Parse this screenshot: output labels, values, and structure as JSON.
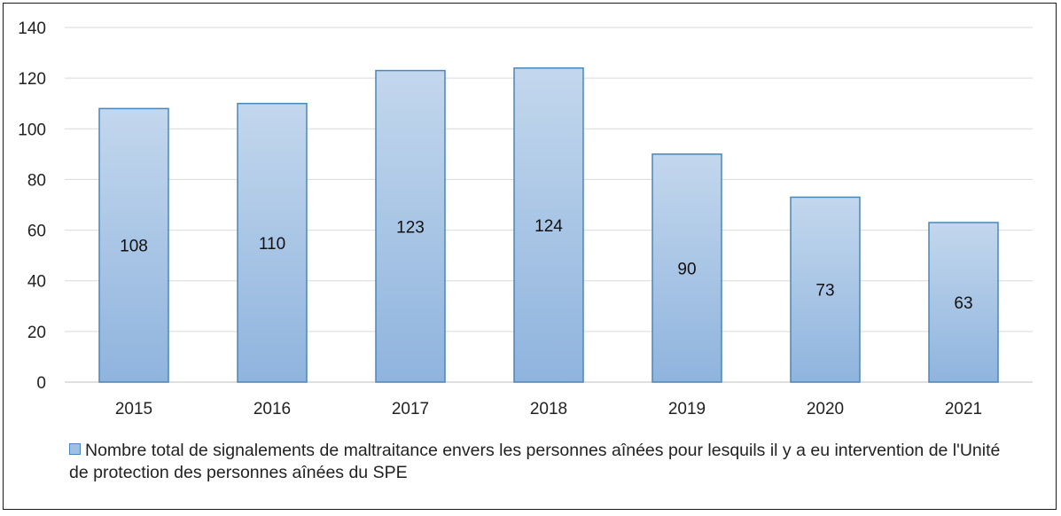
{
  "chart_data": {
    "type": "bar",
    "categories": [
      "2015",
      "2016",
      "2017",
      "2018",
      "2019",
      "2020",
      "2021"
    ],
    "series": [
      {
        "name": "Nombre total de signalements de maltraitance envers les personnes aînées pour lesquils il y a eu intervention de l'Unité de protection des personnes aînées du SPE",
        "values": [
          108,
          110,
          123,
          124,
          90,
          73,
          63
        ]
      }
    ],
    "ylim": [
      0,
      140
    ],
    "yticks": [
      0,
      20,
      40,
      60,
      80,
      100,
      120,
      140
    ],
    "grid": true,
    "legend": "bottom",
    "colors": {
      "bar_top": "#c3d7ed",
      "bar_bottom": "#8fb4de",
      "bar_border": "#4a86b8",
      "grid": "#d9d9d9"
    }
  }
}
